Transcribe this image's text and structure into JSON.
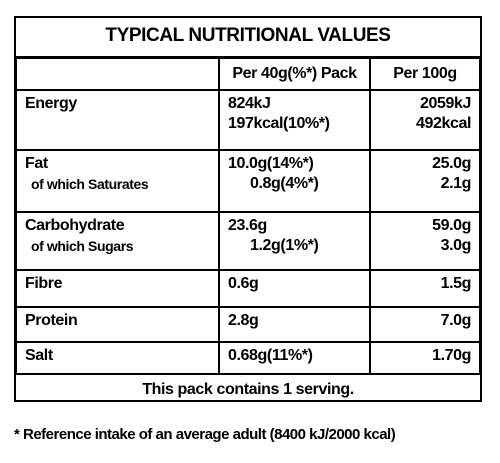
{
  "title": "TYPICAL NUTRITIONAL VALUES",
  "columns": [
    "Per 40g(%*) Pack",
    "Per 100g"
  ],
  "rows": [
    {
      "label": [
        "Energy"
      ],
      "pack": [
        "824kJ",
        "197kcal(10%*)"
      ],
      "per100": [
        "2059kJ",
        "492kcal"
      ]
    },
    {
      "label": [
        "Fat",
        "of which Saturates"
      ],
      "pack": [
        "10.0g(14%*)",
        "0.8g(4%*)"
      ],
      "per100": [
        "25.0g",
        "2.1g"
      ]
    },
    {
      "label": [
        "Carbohydrate",
        "of which Sugars"
      ],
      "pack": [
        "23.6g",
        "1.2g(1%*)"
      ],
      "per100": [
        "59.0g",
        "3.0g"
      ]
    },
    {
      "label": [
        "Fibre"
      ],
      "pack": [
        "0.6g"
      ],
      "per100": [
        "1.5g"
      ]
    },
    {
      "label": [
        "Protein"
      ],
      "pack": [
        "2.8g"
      ],
      "per100": [
        "7.0g"
      ]
    },
    {
      "label": [
        "Salt"
      ],
      "pack": [
        "0.68g(11%*)"
      ],
      "per100": [
        "1.70g"
      ]
    }
  ],
  "footer": "This pack contains 1 serving.",
  "footnote": "* Reference intake of an average adult (8400 kJ/2000 kcal)"
}
